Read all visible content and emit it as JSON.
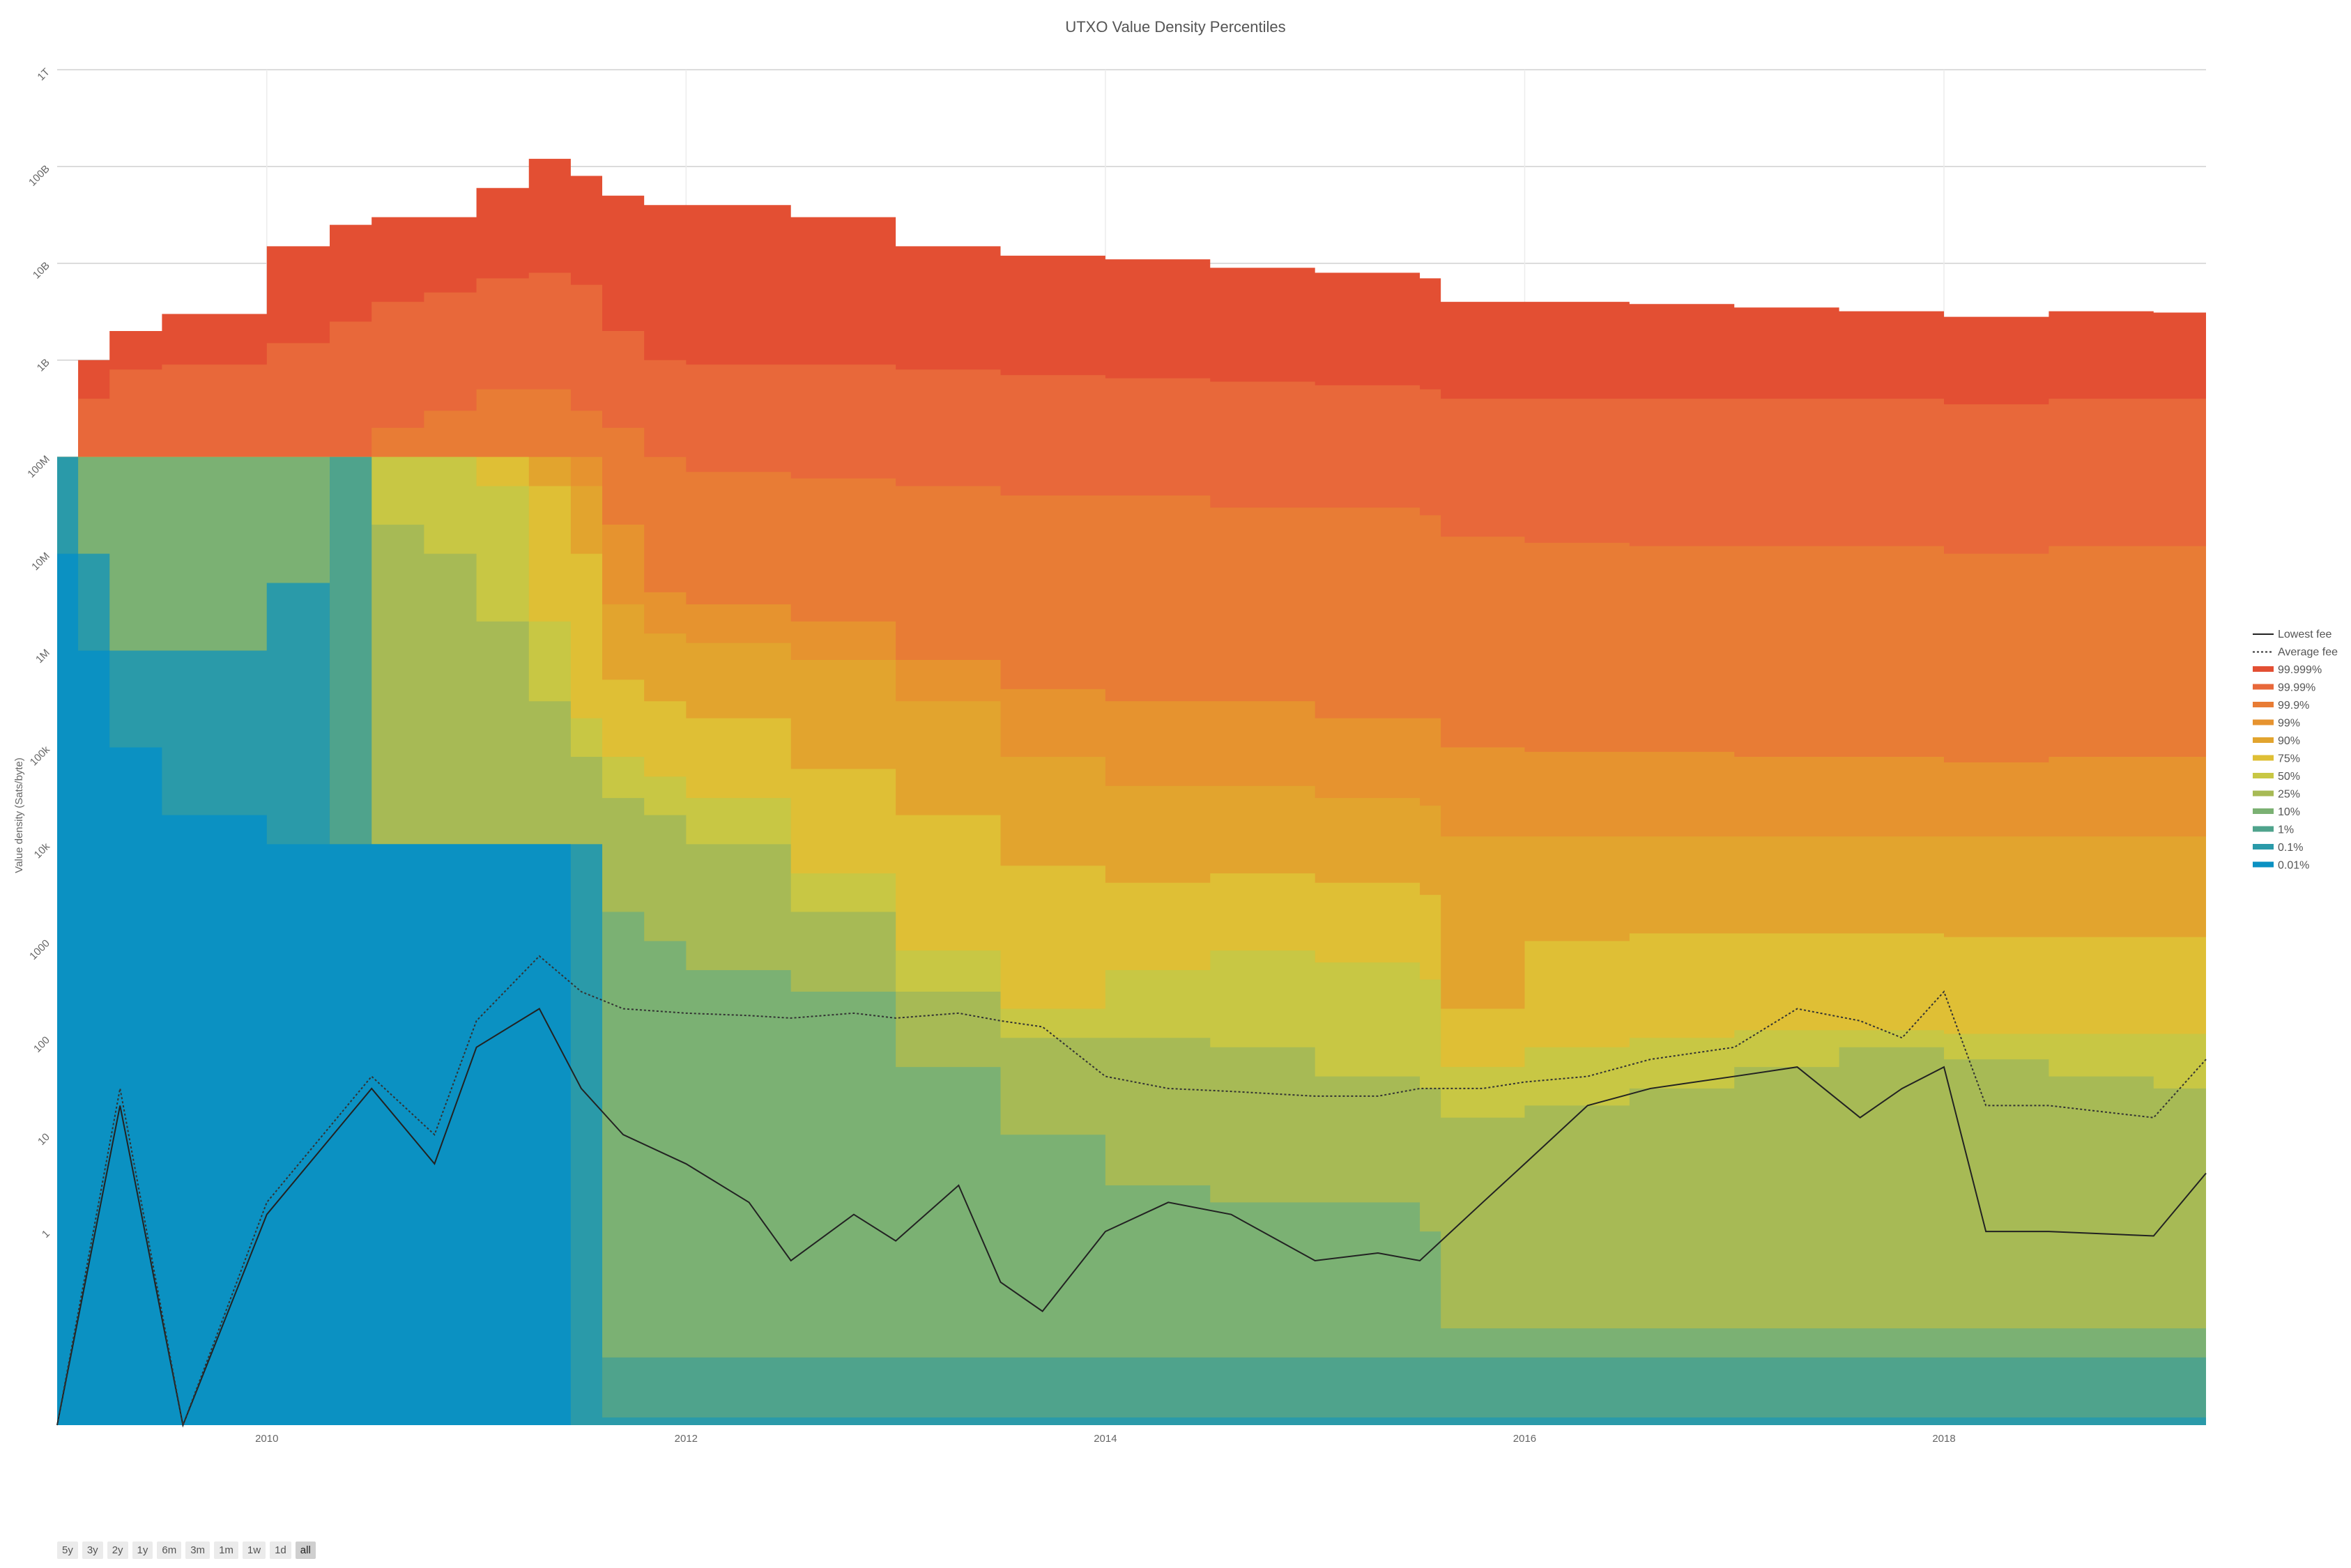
{
  "chart_data": {
    "type": "area",
    "title": "UTXO Value Density Percentiles",
    "ylabel": "Value density (Sats/byte)",
    "xlabel": "",
    "y_scale": "log",
    "ylim": [
      0.01,
      1000000000000
    ],
    "xlim": [
      2009.0,
      2019.25
    ],
    "x_ticks": [
      2010,
      2012,
      2014,
      2016,
      2018
    ],
    "y_ticks": [
      {
        "value": 1,
        "label": "1"
      },
      {
        "value": 10,
        "label": "10"
      },
      {
        "value": 100,
        "label": "100"
      },
      {
        "value": 1000,
        "label": "1000"
      },
      {
        "value": 10000,
        "label": "10k"
      },
      {
        "value": 100000,
        "label": "100k"
      },
      {
        "value": 1000000,
        "label": "1M"
      },
      {
        "value": 10000000,
        "label": "10M"
      },
      {
        "value": 100000000,
        "label": "100M"
      },
      {
        "value": 1000000000,
        "label": "1B"
      },
      {
        "value": 10000000000,
        "label": "10B"
      },
      {
        "value": 100000000000,
        "label": "100B"
      },
      {
        "value": 1000000000000,
        "label": "1T"
      }
    ],
    "grid": true,
    "legend_position": "right",
    "x": [
      2009.0,
      2009.1,
      2009.25,
      2009.5,
      2010.0,
      2010.3,
      2010.5,
      2010.75,
      2011.0,
      2011.25,
      2011.45,
      2011.6,
      2011.8,
      2012.0,
      2012.5,
      2013.0,
      2013.5,
      2014.0,
      2014.5,
      2015.0,
      2015.5,
      2015.6,
      2016.0,
      2016.5,
      2017.0,
      2017.5,
      2018.0,
      2018.5,
      2019.0,
      2019.25
    ],
    "series": [
      {
        "name": "99.999%",
        "color": "#e34f33",
        "values": [
          100000000.0,
          1000000000.0,
          2000000000.0,
          3000000000.0,
          15000000000.0,
          25000000000.0,
          30000000000.0,
          30000000000.0,
          60000000000.0,
          120000000000.0,
          80000000000.0,
          50000000000.0,
          40000000000.0,
          40000000000.0,
          30000000000.0,
          15000000000.0,
          12000000000.0,
          11000000000.0,
          9000000000.0,
          8000000000.0,
          7000000000.0,
          4000000000.0,
          4000000000.0,
          3800000000.0,
          3500000000.0,
          3200000000.0,
          2800000000.0,
          3200000000.0,
          3100000000.0,
          3000000000.0
        ]
      },
      {
        "name": "99.99%",
        "color": "#e8683a",
        "values": [
          100000000.0,
          400000000.0,
          800000000.0,
          900000000.0,
          1500000000.0,
          2500000000.0,
          4000000000.0,
          5000000000.0,
          7000000000.0,
          8000000000.0,
          6000000000.0,
          2000000000.0,
          1000000000.0,
          900000000.0,
          900000000.0,
          800000000.0,
          700000000.0,
          650000000.0,
          600000000.0,
          550000000.0,
          500000000.0,
          400000000.0,
          400000000.0,
          400000000.0,
          400000000.0,
          400000000.0,
          350000000.0,
          400000000.0,
          400000000.0,
          400000000.0
        ]
      },
      {
        "name": "99.9%",
        "color": "#e87c35",
        "values": [
          100000000.0,
          100000000.0,
          100000000.0,
          100000000.0,
          100000000.0,
          100000000.0,
          200000000.0,
          300000000.0,
          500000000.0,
          500000000.0,
          300000000.0,
          200000000.0,
          100000000.0,
          70000000.0,
          60000000.0,
          50000000.0,
          40000000.0,
          40000000.0,
          30000000.0,
          30000000.0,
          25000000.0,
          15000000.0,
          13000000.0,
          12000000.0,
          12000000.0,
          12000000.0,
          10000000.0,
          12000000.0,
          12000000.0,
          12000000.0
        ]
      },
      {
        "name": "99%",
        "color": "#e6932f",
        "values": [
          100000000.0,
          100000000.0,
          100000000.0,
          100000000.0,
          100000000.0,
          100000000.0,
          100000000.0,
          100000000.0,
          100000000.0,
          100000000.0,
          100000000.0,
          20000000.0,
          4000000.0,
          3000000.0,
          2000000.0,
          800000.0,
          400000.0,
          300000.0,
          300000.0,
          200000.0,
          200000.0,
          100000.0,
          90000.0,
          90000.0,
          80000.0,
          80000.0,
          70000.0,
          80000.0,
          80000.0,
          80000.0
        ]
      },
      {
        "name": "90%",
        "color": "#e2a42e",
        "values": [
          100000000.0,
          100000000.0,
          100000000.0,
          100000000.0,
          100000000.0,
          100000000.0,
          100000000.0,
          100000000.0,
          100000000.0,
          100000000.0,
          50000000.0,
          3000000.0,
          1500000.0,
          1200000.0,
          800000.0,
          300000.0,
          80000.0,
          40000.0,
          40000.0,
          30000.0,
          25000.0,
          12000.0,
          12000.0,
          12000.0,
          12000.0,
          12000.0,
          12000.0,
          12000.0,
          12000.0,
          12000.0
        ]
      },
      {
        "name": "75%",
        "color": "#dfbf35",
        "values": [
          100000000.0,
          100000000.0,
          100000000.0,
          100000000.0,
          100000000.0,
          100000000.0,
          100000000.0,
          100000000.0,
          100000000.0,
          50000000.0,
          10000000.0,
          500000.0,
          300000.0,
          200000.0,
          60000.0,
          20000.0,
          6000.0,
          4000.0,
          5000.0,
          4000.0,
          3000.0,
          200.0,
          1000.0,
          1200.0,
          1200.0,
          1200.0,
          1100.0,
          1100.0,
          1100.0,
          1100.0
        ]
      },
      {
        "name": "50%",
        "color": "#c8c744",
        "values": [
          100000000.0,
          100000000.0,
          100000000.0,
          100000000.0,
          100000000.0,
          100000000.0,
          100000000.0,
          100000000.0,
          50000000.0,
          2000000.0,
          200000.0,
          80000.0,
          50000.0,
          30000.0,
          5000.0,
          800.0,
          200.0,
          500.0,
          800.0,
          600.0,
          400.0,
          50.0,
          80.0,
          100.0,
          120.0,
          120.0,
          110.0,
          110.0,
          110.0,
          100.0
        ]
      },
      {
        "name": "25%",
        "color": "#a7ba55",
        "values": [
          100000000.0,
          100000000.0,
          100000000.0,
          100000000.0,
          100000000.0,
          100000000.0,
          20000000.0,
          10000000.0,
          2000000.0,
          300000.0,
          80000.0,
          30000.0,
          20000.0,
          10000.0,
          2000.0,
          300.0,
          100.0,
          100.0,
          80.0,
          40.0,
          30.0,
          15.0,
          20.0,
          30.0,
          50.0,
          80.0,
          60.0,
          40.0,
          30.0,
          30.0
        ]
      },
      {
        "name": "10%",
        "color": "#7bb173",
        "values": [
          100000000.0,
          100000000.0,
          100000000.0,
          100000000.0,
          100000000.0,
          100000000.0,
          10000.0,
          10000.0,
          10000.0,
          10000.0,
          8000.0,
          2000.0,
          1000.0,
          500.0,
          300.0,
          50.0,
          10.0,
          3.0,
          2.0,
          2.0,
          1.0,
          0.1,
          0.1,
          0.1,
          0.1,
          0.1,
          0.1,
          0.1,
          0.1,
          0.1
        ]
      },
      {
        "name": "1%",
        "color": "#4fa38c",
        "values": [
          100000000.0,
          10000000.0,
          1000000.0,
          1000000.0,
          5000000.0,
          100000000.0,
          10000.0,
          10000.0,
          10000.0,
          10000.0,
          10000.0,
          0.05,
          0.05,
          0.05,
          0.05,
          0.05,
          0.05,
          0.05,
          0.05,
          0.05,
          0.05,
          0.05,
          0.05,
          0.05,
          0.05,
          0.05,
          0.05,
          0.05,
          0.05,
          0.05
        ]
      },
      {
        "name": "0.1%",
        "color": "#2a9aa9",
        "values": [
          100000000.0,
          10000000.0,
          1000000.0,
          1000000.0,
          5000000.0,
          10000.0,
          10000.0,
          10000.0,
          10000.0,
          10000.0,
          10000.0,
          0.012,
          0.012,
          0.012,
          0.012,
          0.012,
          0.012,
          0.012,
          0.012,
          0.012,
          0.012,
          0.012,
          0.012,
          0.012,
          0.012,
          0.012,
          0.012,
          0.012,
          0.012,
          0.012
        ]
      },
      {
        "name": "0.01%",
        "color": "#0b91c2",
        "values": [
          10000000.0,
          1000000.0,
          100000.0,
          20000.0,
          10000.0,
          10000.0,
          10000.0,
          10000.0,
          10000.0,
          10000.0,
          0.01,
          0.01,
          0.01,
          0.01,
          0.01,
          0.01,
          0.01,
          0.01,
          0.01,
          0.01,
          0.01,
          0.01,
          0.01,
          0.01,
          0.01,
          0.01,
          0.01,
          0.01,
          0.01,
          0.01
        ]
      }
    ],
    "lines": [
      {
        "name": "Lowest fee",
        "color": "#222222",
        "style": "solid",
        "x": [
          2009.0,
          2009.3,
          2009.6,
          2010.0,
          2010.5,
          2010.8,
          2011.0,
          2011.3,
          2011.5,
          2011.7,
          2012.0,
          2012.3,
          2012.5,
          2012.8,
          2013.0,
          2013.3,
          2013.5,
          2013.7,
          2014.0,
          2014.3,
          2014.6,
          2015.0,
          2015.3,
          2015.5,
          2015.8,
          2016.0,
          2016.3,
          2016.6,
          2017.0,
          2017.3,
          2017.6,
          2017.8,
          2018.0,
          2018.2,
          2018.5,
          2019.0,
          2019.25
        ],
        "values": [
          0.01,
          20,
          0.01,
          1.5,
          30,
          5,
          80,
          200,
          30,
          10,
          5,
          2,
          0.5,
          1.5,
          0.8,
          3,
          0.3,
          0.15,
          1.0,
          2,
          1.5,
          0.5,
          0.6,
          0.5,
          2,
          5,
          20,
          30,
          40,
          50,
          15,
          30,
          50,
          1.0,
          1.0,
          0.9,
          4
        ]
      },
      {
        "name": "Average fee",
        "color": "#333333",
        "style": "dotted",
        "x": [
          2009.0,
          2009.3,
          2009.6,
          2010.0,
          2010.5,
          2010.8,
          2011.0,
          2011.3,
          2011.5,
          2011.7,
          2012.0,
          2012.3,
          2012.5,
          2012.8,
          2013.0,
          2013.3,
          2013.5,
          2013.7,
          2014.0,
          2014.3,
          2014.6,
          2015.0,
          2015.3,
          2015.5,
          2015.8,
          2016.0,
          2016.3,
          2016.6,
          2017.0,
          2017.3,
          2017.6,
          2017.8,
          2018.0,
          2018.2,
          2018.5,
          2019.0,
          2019.25
        ],
        "values": [
          0.01,
          30,
          0.01,
          2,
          40,
          10,
          150,
          700,
          300,
          200,
          180,
          170,
          160,
          180,
          160,
          180,
          150,
          130,
          40,
          30,
          28,
          25,
          25,
          30,
          30,
          35,
          40,
          60,
          80,
          200,
          150,
          100,
          300,
          20,
          20,
          15,
          60
        ]
      }
    ]
  },
  "range_buttons": [
    {
      "label": "5y",
      "active": false
    },
    {
      "label": "3y",
      "active": false
    },
    {
      "label": "2y",
      "active": false
    },
    {
      "label": "1y",
      "active": false
    },
    {
      "label": "6m",
      "active": false
    },
    {
      "label": "3m",
      "active": false
    },
    {
      "label": "1m",
      "active": false
    },
    {
      "label": "1w",
      "active": false
    },
    {
      "label": "1d",
      "active": false
    },
    {
      "label": "all",
      "active": true
    }
  ]
}
